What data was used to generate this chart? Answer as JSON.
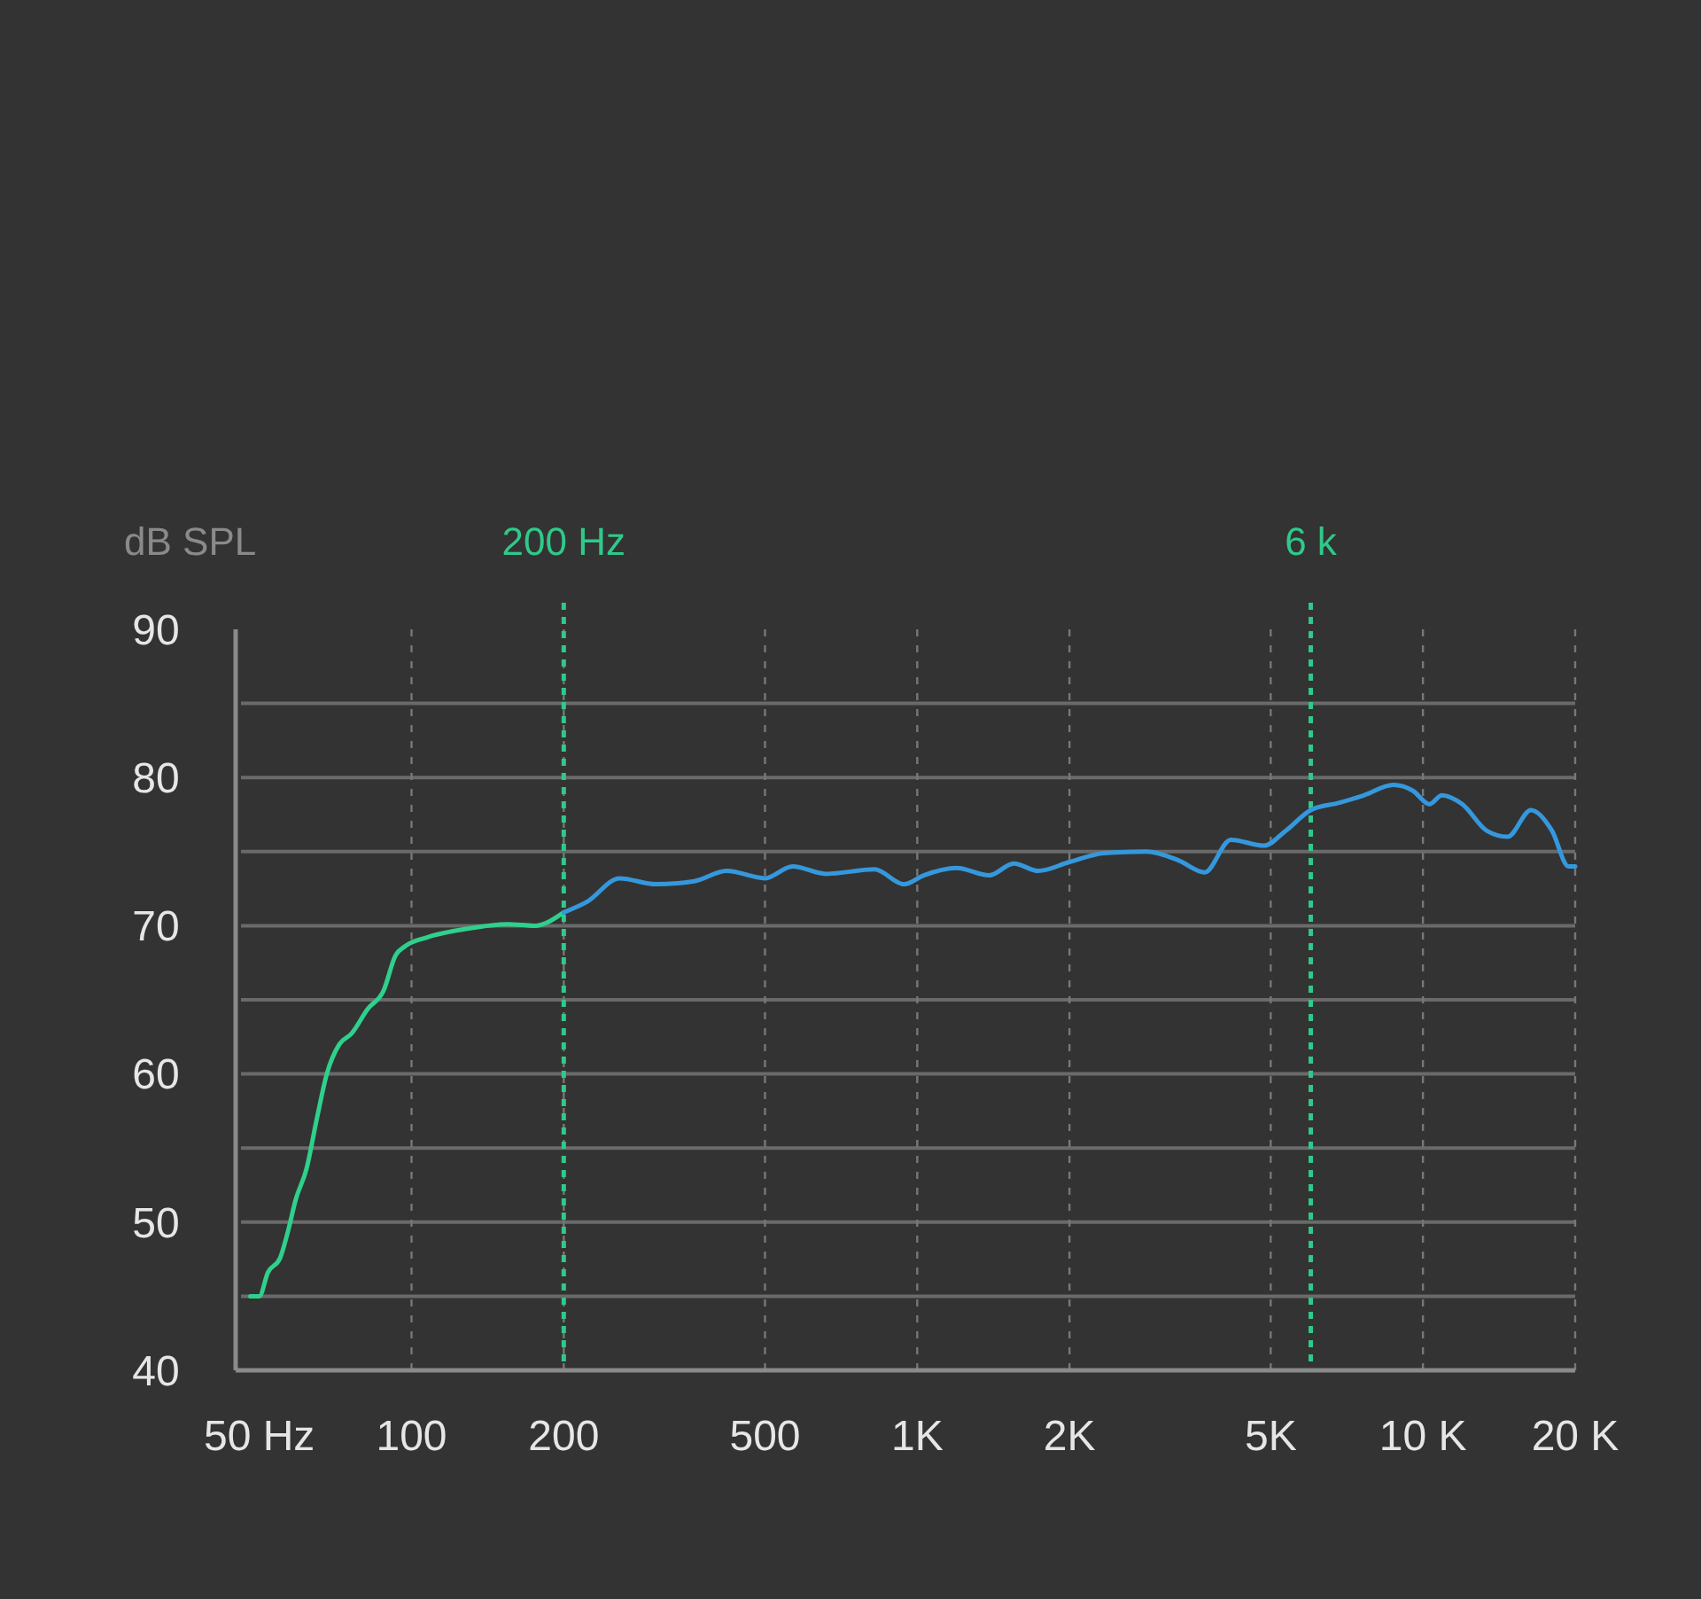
{
  "chart_data": {
    "type": "line",
    "ylabel": "dB SPL",
    "xlim": [
      46,
      20000
    ],
    "ylim": [
      40,
      90
    ],
    "xticks": [
      {
        "value": 50,
        "label": "50 Hz"
      },
      100,
      200,
      500,
      {
        "value": 1000,
        "label": "1K"
      },
      {
        "value": 2000,
        "label": "2K"
      },
      {
        "value": 5000,
        "label": "5K"
      },
      {
        "value": 10000,
        "label": "10 K"
      },
      {
        "value": 20000,
        "label": "20 K"
      }
    ],
    "yticks": [
      40,
      {
        "value": 45,
        "label": null
      },
      50,
      {
        "value": 55,
        "label": null
      },
      60,
      {
        "value": 65,
        "label": null
      },
      70,
      {
        "value": 75,
        "label": null
      },
      80,
      {
        "value": 85,
        "label": null
      },
      90
    ],
    "grid": true,
    "log": "x",
    "line_style": "solid",
    "marker": "none",
    "ref_lines": [
      {
        "axis": "x",
        "value": 200,
        "label": "200 Hz",
        "color": "#2fc98a",
        "line_style": "dashed"
      },
      {
        "axis": "x",
        "value": 6000,
        "label": "6 k",
        "color": "#2fc98a",
        "line_style": "dashed"
      }
    ],
    "series": [
      {
        "color": "#2fd08c",
        "x": [
          48,
          50,
          52,
          55,
          57,
          59,
          62,
          65,
          68,
          72,
          76,
          82,
          88,
          93,
          97,
          107,
          129,
          155,
          175,
          200
        ],
        "values": [
          45,
          45,
          46.6,
          47.6,
          49.4,
          51.5,
          53.6,
          57,
          60,
          62,
          62.7,
          64.4,
          65.6,
          68,
          68.6,
          69.2,
          69.8,
          70.1,
          70,
          70.9
        ]
      },
      {
        "color": "#3598dc",
        "x": [
          200,
          222,
          258,
          304,
          362,
          420,
          500,
          567,
          660,
          823,
          942,
          1030,
          1196,
          1388,
          1552,
          1735,
          2000,
          2340,
          2840,
          3290,
          3700,
          4170,
          4850,
          5350,
          6000,
          6840,
          7640,
          8740,
          9560,
          10300,
          10900,
          11960,
          13380,
          14700,
          16350,
          18000,
          19400,
          20000
        ],
        "values": [
          70.9,
          71.6,
          73.2,
          72.8,
          73,
          73.7,
          73.2,
          74,
          73.5,
          73.8,
          72.8,
          73.4,
          73.9,
          73.4,
          74.2,
          73.7,
          74.3,
          74.9,
          75,
          74.4,
          73.6,
          75.8,
          75.4,
          76.4,
          77.8,
          78.3,
          78.8,
          79.5,
          79.1,
          78.2,
          78.8,
          78.2,
          76.4,
          76,
          77.8,
          76.4,
          74,
          74
        ]
      }
    ]
  }
}
